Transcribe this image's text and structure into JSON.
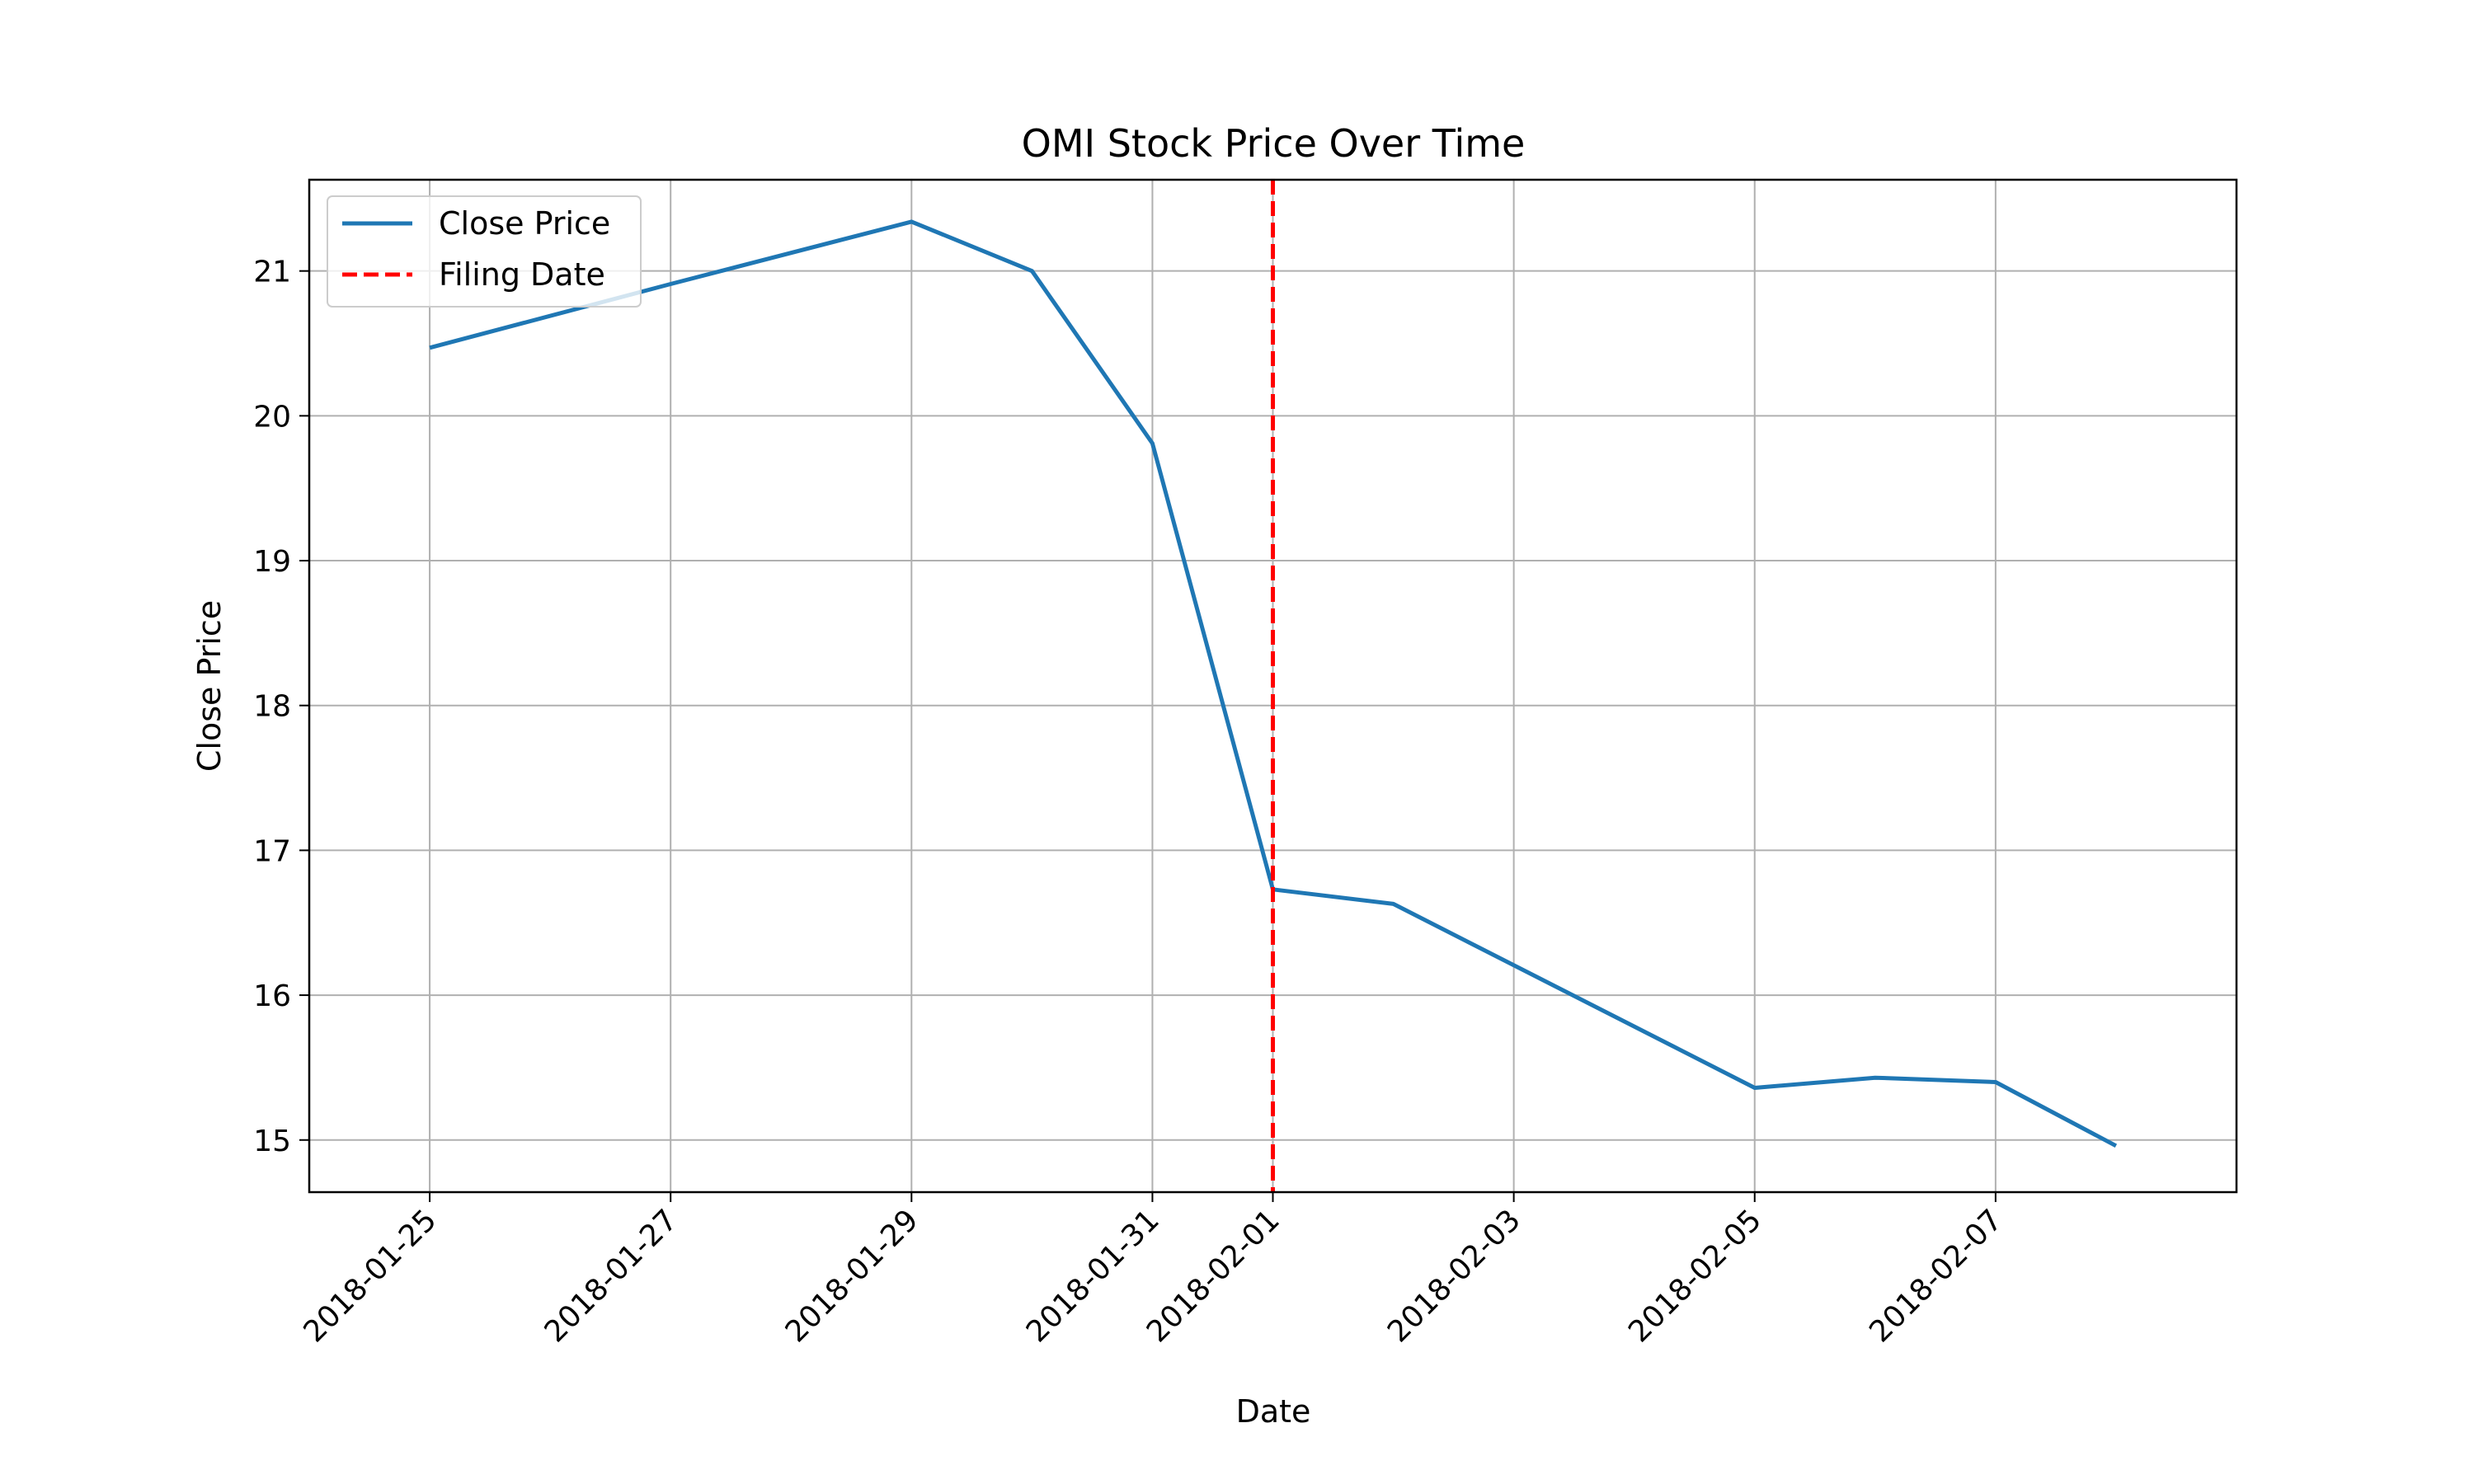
{
  "chart_data": {
    "type": "line",
    "title": "OMI Stock Price Over Time",
    "xlabel": "Date",
    "ylabel": "Close Price",
    "x_ticks": [
      "2018-01-25",
      "2018-01-27",
      "2018-01-29",
      "2018-01-31",
      "2018-02-01",
      "2018-02-03",
      "2018-02-05",
      "2018-02-07"
    ],
    "y_ticks": [
      "15",
      "16",
      "17",
      "18",
      "19",
      "20",
      "21"
    ],
    "xlim": [
      "2018-01-24",
      "2018-02-09"
    ],
    "ylim": [
      14.64,
      21.63
    ],
    "grid": true,
    "legend_position": "upper-left",
    "series": [
      {
        "name": "Close Price",
        "color": "#1f77b4",
        "style": "solid",
        "points": [
          {
            "x": "2018-01-25",
            "y": 20.47
          },
          {
            "x": "2018-01-27",
            "y": 20.91
          },
          {
            "x": "2018-01-29",
            "y": 21.34
          },
          {
            "x": "2018-01-30",
            "y": 21.0
          },
          {
            "x": "2018-01-31",
            "y": 19.81
          },
          {
            "x": "2018-02-01",
            "y": 16.73
          },
          {
            "x": "2018-02-02",
            "y": 16.63
          },
          {
            "x": "2018-02-05",
            "y": 15.36
          },
          {
            "x": "2018-02-06",
            "y": 15.43
          },
          {
            "x": "2018-02-07",
            "y": 15.4
          },
          {
            "x": "2018-02-08",
            "y": 14.96
          }
        ]
      }
    ],
    "vlines": [
      {
        "name": "Filing Date",
        "x": "2018-02-01",
        "color": "#ff0000",
        "style": "dashed"
      }
    ]
  }
}
